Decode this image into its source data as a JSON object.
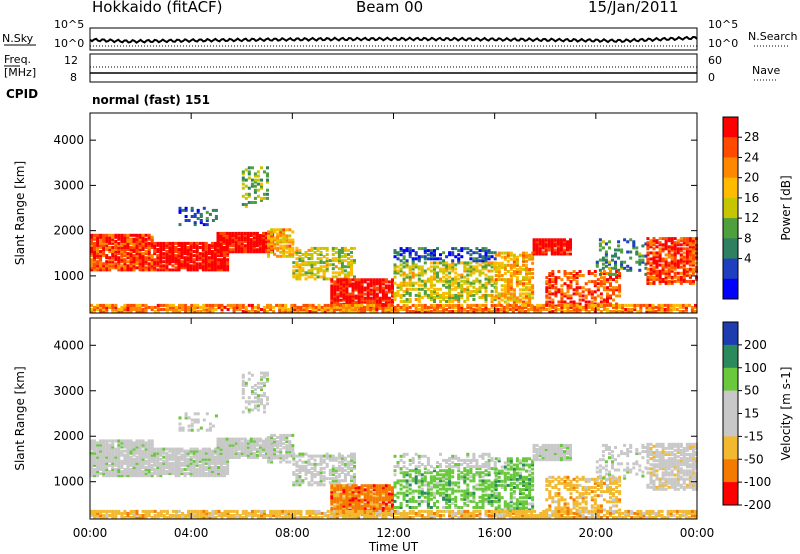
{
  "header": {
    "title": "Hokkaido (fitACF)",
    "beam": "Beam 00",
    "date": "15/Jan/2011"
  },
  "top_panels": {
    "nsky_label": "N.Sky",
    "nsearch_label": "N.Search",
    "nsky_ticks": [
      "10^5",
      "10^0"
    ],
    "nsearch_ticks": [
      "10^5",
      "10^0"
    ],
    "freq_label": "Freq.",
    "freq_unit": "[MHz]",
    "freq_ticks": [
      "12",
      "8"
    ],
    "nave_label": "Nave",
    "nave_ticks": [
      "60",
      "0"
    ],
    "cpid_label": "CPID",
    "cpid_value": "normal (fast) 151"
  },
  "x_axis": {
    "label": "Time UT",
    "ticks": [
      "00:00",
      "04:00",
      "08:00",
      "12:00",
      "16:00",
      "20:00",
      "00:00"
    ]
  },
  "chart_data": [
    {
      "type": "heatmap",
      "name": "Power",
      "ylabel": "Slant Range [km]",
      "yticks": [
        "4000",
        "3000",
        "2000",
        "1000"
      ],
      "ylim": [
        180,
        4600
      ],
      "xlim": [
        "00:00",
        "24:00"
      ],
      "colorbar": {
        "label": "Power [dB]",
        "ticks": [
          "28",
          "24",
          "20",
          "16",
          "12",
          "8",
          "4"
        ],
        "colors": [
          "#ff0000",
          "#ff4a00",
          "#ff8800",
          "#ffbb00",
          "#c6c600",
          "#4f9f3d",
          "#2e8060",
          "#1f3fbf",
          "#0000ff"
        ]
      }
    },
    {
      "type": "heatmap",
      "name": "Velocity",
      "ylabel": "Slant Range [km]",
      "yticks": [
        "4000",
        "3000",
        "2000",
        "1000"
      ],
      "ylim": [
        180,
        4600
      ],
      "xlim": [
        "00:00",
        "24:00"
      ],
      "colorbar": {
        "label": "Velocity [m s-1]",
        "ticks": [
          "200",
          "100",
          "50",
          "15",
          "-15",
          "-50",
          "-100",
          "-200"
        ],
        "colors": [
          "#1c3cb0",
          "#2b8a5c",
          "#69c83c",
          "#c8c8c8",
          "#c8c8c8",
          "#f2b830",
          "#f47a00",
          "#ff0000"
        ]
      }
    }
  ]
}
